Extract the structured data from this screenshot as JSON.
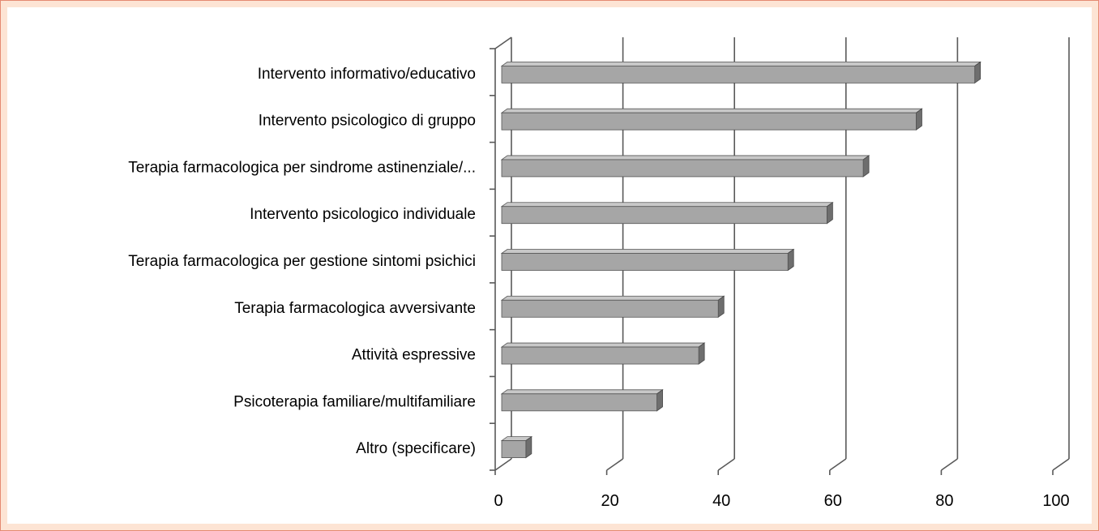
{
  "chart_data": {
    "type": "bar",
    "orientation": "horizontal",
    "categories": [
      "Intervento informativo/educativo",
      "Intervento psicologico di gruppo",
      "Terapia farmacologica per sindrome astinenziale/...",
      "Intervento psicologico individuale",
      "Terapia farmacologica per gestione sintomi psichici",
      "Terapia farmacologica avversivante",
      "Attività espressive",
      "Psicoterapia familiare/multifamiliare",
      "Altro (specificare)"
    ],
    "values": [
      86,
      75.5,
      66,
      59.5,
      52.5,
      40,
      36.5,
      29,
      5.5
    ],
    "xlim": [
      0,
      100
    ],
    "x_ticks": [
      0,
      20,
      40,
      60,
      80,
      100
    ],
    "tick_labels": [
      "0",
      "20",
      "40",
      "60",
      "80",
      "100"
    ],
    "grid": true,
    "style": "3d",
    "colors": {
      "bar_front": "#a6a6a6",
      "bar_top": "#c8c8c8",
      "bar_side": "#6e6e6e",
      "grid": "#595959"
    }
  }
}
